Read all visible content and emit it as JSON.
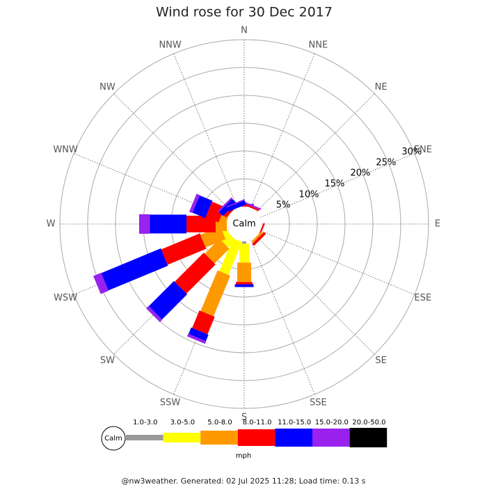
{
  "chart_data": {
    "type": "windrose",
    "title": "Wind rose for 30 Dec 2017",
    "directions": [
      "N",
      "NNE",
      "NE",
      "ENE",
      "E",
      "ESE",
      "SE",
      "SSE",
      "S",
      "SSW",
      "SW",
      "WSW",
      "W",
      "WNW",
      "NW",
      "NNW"
    ],
    "calm_label": "Calm",
    "unit": "mph",
    "rlim": [
      0,
      30
    ],
    "rticks": [
      {
        "value": 5,
        "label": "5%"
      },
      {
        "value": 10,
        "label": "10%"
      },
      {
        "value": 15,
        "label": "15%"
      },
      {
        "value": 20,
        "label": "20%"
      },
      {
        "value": 25,
        "label": "25%"
      },
      {
        "value": 30,
        "label": "30%"
      }
    ],
    "series": [
      {
        "name": "1.0-3.0",
        "color": "#999999",
        "values": [
          0,
          0,
          0,
          0,
          0,
          0,
          0,
          0,
          0.4,
          0,
          0,
          0,
          0,
          0,
          0,
          0
        ]
      },
      {
        "name": "3.0-5.0",
        "color": "#ffff00",
        "values": [
          0,
          0,
          0,
          0,
          0,
          0,
          0,
          0,
          3.4,
          6.4,
          1.9,
          1.0,
          0,
          0,
          0,
          0
        ]
      },
      {
        "name": "5.0-8.0",
        "color": "#ff9900",
        "values": [
          0,
          0,
          0,
          0,
          0,
          0,
          0.4,
          0,
          3.5,
          7.9,
          3.75,
          3.9,
          2.0,
          1.25,
          0,
          0
        ]
      },
      {
        "name": "8.0-11.0",
        "color": "#ff0000",
        "values": [
          0.2,
          0.3,
          0,
          0,
          0,
          0.3,
          0.5,
          0,
          0.4,
          3.4,
          7.4,
          7.5,
          5.25,
          2.5,
          0.6,
          0
        ]
      },
      {
        "name": "11.0-15.0",
        "color": "#0000ff",
        "values": [
          0,
          0,
          0,
          0,
          0,
          0,
          0,
          0,
          0.5,
          1.25,
          6.4,
          11.6,
          6.6,
          2.5,
          1.0,
          0.8
        ]
      },
      {
        "name": "15.0-20.0",
        "color": "#9922ee",
        "values": [
          0.3,
          0.3,
          0,
          0,
          0,
          0,
          0,
          0,
          0,
          0.5,
          0.6,
          1.5,
          1.9,
          0.6,
          0.3,
          0.2
        ]
      },
      {
        "name": "20.0-50.0",
        "color": "#000000",
        "values": [
          0,
          0,
          0,
          0,
          0,
          0,
          0,
          0,
          0,
          0,
          0,
          0,
          0,
          0,
          0,
          0
        ]
      }
    ]
  },
  "footer": "@nw3weather. Generated: 02 Jul 2025 11:28; Load time: 0.13 s"
}
